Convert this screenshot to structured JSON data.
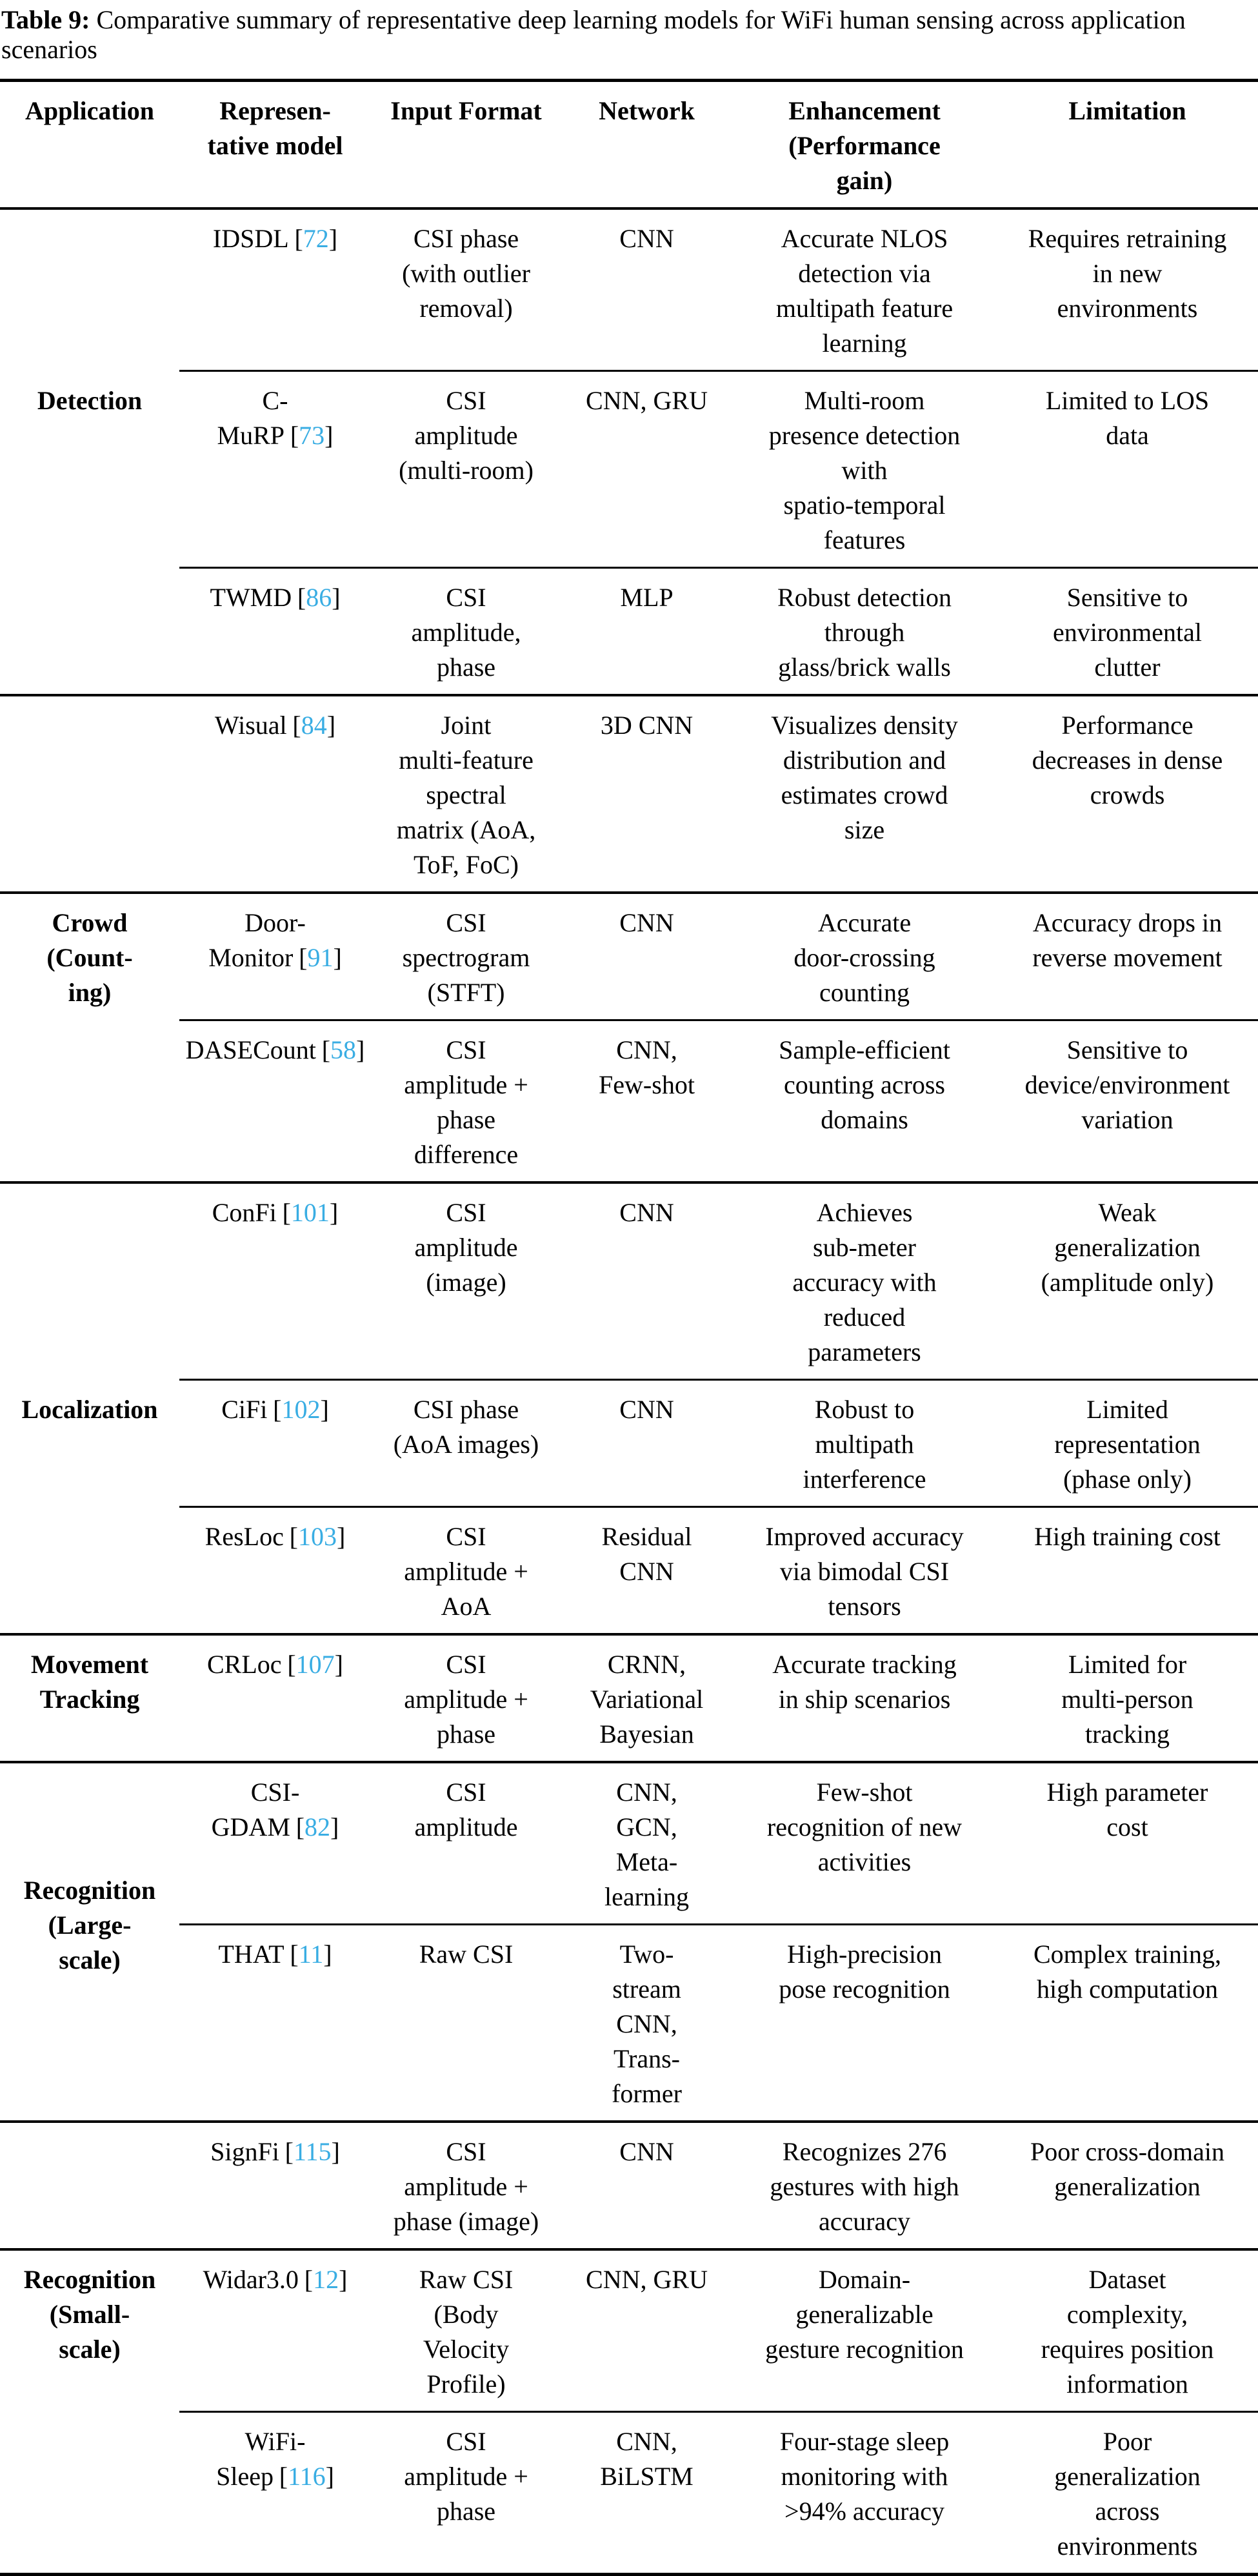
{
  "caption": {
    "label": "Table 9:",
    "text": "Comparative summary of representative deep learning models for WiFi human sensing across application\nscenarios"
  },
  "colors": {
    "citation_blue": "#39ADE3",
    "text": "#000000",
    "background": "#ffffff"
  },
  "cite": {
    "open": "[",
    "close": "]"
  },
  "columns": [
    "Application",
    "Represen-\ntative model",
    "Input Format",
    "Network",
    "Enhancement\n(Performance\ngain)",
    "Limitation"
  ],
  "groups": [
    {
      "application": "Detection",
      "rows": [
        {
          "model": "IDSDL",
          "ref": "72",
          "input": "CSI phase\n(with outlier\nremoval)",
          "network": "CNN",
          "enhancement": "Accurate NLOS\ndetection via\nmultipath feature\nlearning",
          "limitation": "Requires retraining\nin new\nenvironments"
        },
        {
          "model": "C-\nMuRP",
          "ref": "73",
          "input": "CSI\namplitude\n(multi-room)",
          "network": "CNN, GRU",
          "enhancement": "Multi-room\npresence detection\nwith\nspatio-temporal\nfeatures",
          "limitation": "Limited to LOS\ndata"
        },
        {
          "model": "TWMD",
          "ref": "86",
          "input": "CSI\namplitude,\nphase",
          "network": "MLP",
          "enhancement": "Robust detection\nthrough\nglass/brick walls",
          "limitation": "Sensitive to\nenvironmental\nclutter"
        }
      ]
    },
    {
      "application": "",
      "rows": [
        {
          "model": "Wisual",
          "ref": "84",
          "input": "Joint\nmulti-feature\nspectral\nmatrix (AoA,\nToF, FoC)",
          "network": "3D CNN",
          "enhancement": "Visualizes density\ndistribution and\nestimates crowd\nsize",
          "limitation": "Performance\ndecreases in dense\ncrowds"
        }
      ]
    },
    {
      "application": "Crowd\n(Count-\ning)",
      "rows": [
        {
          "model": "Door-\nMonitor",
          "ref": "91",
          "input": "CSI\nspectrogram\n(STFT)",
          "network": "CNN",
          "enhancement": "Accurate\ndoor-crossing\ncounting",
          "limitation": "Accuracy drops in\nreverse movement"
        },
        {
          "model": "DASECount",
          "ref": "58",
          "input": "CSI\namplitude +\nphase\ndifference",
          "network": "CNN,\nFew-shot",
          "enhancement": "Sample-efficient\ncounting across\ndomains",
          "limitation": "Sensitive to\ndevice/environment\nvariation"
        }
      ]
    },
    {
      "application": "Localization",
      "rows": [
        {
          "model": "ConFi",
          "ref": "101",
          "input": "CSI\namplitude\n(image)",
          "network": "CNN",
          "enhancement": "Achieves\nsub-meter\naccuracy with\nreduced\nparameters",
          "limitation": "Weak\ngeneralization\n(amplitude only)"
        },
        {
          "model": "CiFi",
          "ref": "102",
          "input": "CSI phase\n(AoA images)",
          "network": "CNN",
          "enhancement": "Robust to\nmultipath\ninterference",
          "limitation": "Limited\nrepresentation\n(phase only)"
        },
        {
          "model": "ResLoc",
          "ref": "103",
          "input": "CSI\namplitude +\nAoA",
          "network": "Residual\nCNN",
          "enhancement": "Improved accuracy\nvia bimodal CSI\ntensors",
          "limitation": "High training cost"
        }
      ]
    },
    {
      "application": "Movement\nTracking",
      "rows": [
        {
          "model": "CRLoc",
          "ref": "107",
          "input": "CSI\namplitude +\nphase",
          "network": "CRNN,\nVariational\nBayesian",
          "enhancement": "Accurate tracking\nin ship scenarios",
          "limitation": "Limited for\nmulti-person\ntracking"
        }
      ]
    },
    {
      "application": "Recognition\n(Large-\nscale)",
      "rows": [
        {
          "model": "CSI-\nGDAM",
          "ref": "82",
          "input": "CSI\namplitude",
          "network": "CNN,\nGCN,\nMeta-\nlearning",
          "enhancement": "Few-shot\nrecognition of new\nactivities",
          "limitation": "High parameter\ncost"
        },
        {
          "model": "THAT",
          "ref": "11",
          "input": "Raw CSI",
          "network": "Two-\nstream\nCNN,\nTrans-\nformer",
          "enhancement": "High-precision\npose recognition",
          "limitation": "Complex training,\nhigh computation"
        }
      ]
    },
    {
      "application": "",
      "rows": [
        {
          "model": "SignFi",
          "ref": "115",
          "input": "CSI\namplitude +\nphase (image)",
          "network": "CNN",
          "enhancement": "Recognizes 276\ngestures with high\naccuracy",
          "limitation": "Poor cross-domain\ngeneralization"
        }
      ]
    },
    {
      "application": "Recognition\n(Small-\nscale)",
      "rows": [
        {
          "model": "Widar3.0",
          "ref": "12",
          "input": "Raw CSI\n(Body\nVelocity\nProfile)",
          "network": "CNN, GRU",
          "enhancement": "Domain-\ngeneralizable\ngesture recognition",
          "limitation": "Dataset\ncomplexity,\nrequires position\ninformation"
        },
        {
          "model": "WiFi-\nSleep",
          "ref": "116",
          "input": "CSI\namplitude +\nphase",
          "network": "CNN,\nBiLSTM",
          "enhancement": "Four-stage sleep\nmonitoring with\n>94% accuracy",
          "limitation": "Poor\ngeneralization\nacross\nenvironments"
        }
      ]
    }
  ]
}
